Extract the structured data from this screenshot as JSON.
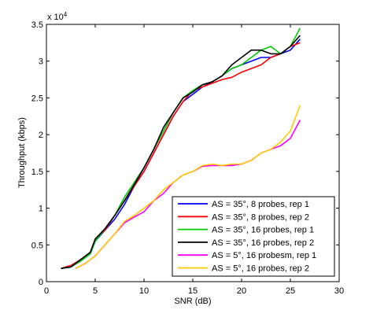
{
  "chart_data": {
    "type": "line",
    "title": "",
    "xlabel": "SNR (dB)",
    "ylabel": "Throughput (kbps)",
    "xlim": [
      0,
      30
    ],
    "ylim": [
      0,
      3.5
    ],
    "y_multiplier_label": "x 10",
    "y_multiplier_exponent": "4",
    "xticks": [
      "0",
      "5",
      "10",
      "15",
      "20",
      "25",
      "30"
    ],
    "yticks": [
      "0",
      "0.5",
      "1",
      "1.5",
      "2",
      "2.5",
      "3",
      "3.5"
    ],
    "grid": false,
    "legend_position": "bottom-right",
    "series": [
      {
        "name": "AS = 35°, 8 probes, rep 1",
        "color": "#0000ff",
        "points": [
          [
            1.5,
            0.18
          ],
          [
            2.5,
            0.2
          ],
          [
            3.5,
            0.28
          ],
          [
            4.5,
            0.38
          ],
          [
            5,
            0.55
          ],
          [
            6,
            0.7
          ],
          [
            7,
            0.85
          ],
          [
            8,
            1.05
          ],
          [
            9,
            1.3
          ],
          [
            10,
            1.5
          ],
          [
            11,
            1.75
          ],
          [
            12,
            2.0
          ],
          [
            13,
            2.25
          ],
          [
            14,
            2.45
          ],
          [
            15,
            2.55
          ],
          [
            16,
            2.65
          ],
          [
            17,
            2.72
          ],
          [
            18,
            2.8
          ],
          [
            19,
            2.9
          ],
          [
            20,
            2.95
          ],
          [
            21,
            3.0
          ],
          [
            22,
            3.05
          ],
          [
            23,
            3.05
          ],
          [
            24,
            3.1
          ],
          [
            25,
            3.15
          ],
          [
            26,
            3.3
          ]
        ]
      },
      {
        "name": "AS = 35°, 8 probes, rep 2",
        "color": "#ff0000",
        "points": [
          [
            1.5,
            0.18
          ],
          [
            2.5,
            0.22
          ],
          [
            3.5,
            0.3
          ],
          [
            4.5,
            0.4
          ],
          [
            5,
            0.58
          ],
          [
            6,
            0.7
          ],
          [
            7,
            0.9
          ],
          [
            8,
            1.1
          ],
          [
            9,
            1.3
          ],
          [
            10,
            1.5
          ],
          [
            11,
            1.75
          ],
          [
            12,
            2.0
          ],
          [
            13,
            2.25
          ],
          [
            14,
            2.45
          ],
          [
            15,
            2.6
          ],
          [
            16,
            2.65
          ],
          [
            17,
            2.7
          ],
          [
            18,
            2.75
          ],
          [
            19,
            2.78
          ],
          [
            20,
            2.85
          ],
          [
            21,
            2.9
          ],
          [
            22,
            2.95
          ],
          [
            23,
            3.05
          ],
          [
            24,
            3.1
          ],
          [
            25,
            3.2
          ],
          [
            26,
            3.25
          ]
        ]
      },
      {
        "name": "AS = 35°, 16 probes, rep 1",
        "color": "#00cc00",
        "points": [
          [
            1.5,
            0.18
          ],
          [
            2.5,
            0.2
          ],
          [
            3.5,
            0.28
          ],
          [
            4.5,
            0.38
          ],
          [
            5,
            0.55
          ],
          [
            6,
            0.72
          ],
          [
            7,
            0.9
          ],
          [
            8,
            1.15
          ],
          [
            9,
            1.35
          ],
          [
            10,
            1.55
          ],
          [
            11,
            1.8
          ],
          [
            12,
            2.05
          ],
          [
            13,
            2.3
          ],
          [
            14,
            2.5
          ],
          [
            15,
            2.6
          ],
          [
            16,
            2.68
          ],
          [
            17,
            2.72
          ],
          [
            18,
            2.8
          ],
          [
            19,
            2.9
          ],
          [
            20,
            2.95
          ],
          [
            21,
            3.05
          ],
          [
            22,
            3.15
          ],
          [
            23,
            3.2
          ],
          [
            24,
            3.1
          ],
          [
            25,
            3.2
          ],
          [
            26,
            3.45
          ]
        ]
      },
      {
        "name": "AS = 35°, 16 probes, rep 2",
        "color": "#000000",
        "points": [
          [
            1.5,
            0.18
          ],
          [
            2.5,
            0.2
          ],
          [
            3.5,
            0.3
          ],
          [
            4.5,
            0.4
          ],
          [
            5,
            0.58
          ],
          [
            6,
            0.72
          ],
          [
            7,
            0.9
          ],
          [
            8,
            1.1
          ],
          [
            9,
            1.32
          ],
          [
            10,
            1.55
          ],
          [
            11,
            1.8
          ],
          [
            12,
            2.1
          ],
          [
            13,
            2.3
          ],
          [
            14,
            2.5
          ],
          [
            15,
            2.58
          ],
          [
            16,
            2.68
          ],
          [
            17,
            2.72
          ],
          [
            18,
            2.8
          ],
          [
            19,
            2.95
          ],
          [
            20,
            3.05
          ],
          [
            21,
            3.15
          ],
          [
            22,
            3.15
          ],
          [
            23,
            3.1
          ],
          [
            24,
            3.1
          ],
          [
            25,
            3.2
          ],
          [
            26,
            3.35
          ]
        ]
      },
      {
        "name": "AS = 5°, 16 probesm, rep 1",
        "color": "#ff00ff",
        "points": [
          [
            3,
            0.18
          ],
          [
            4,
            0.25
          ],
          [
            5,
            0.35
          ],
          [
            6,
            0.5
          ],
          [
            7,
            0.65
          ],
          [
            8,
            0.8
          ],
          [
            9,
            0.88
          ],
          [
            10,
            0.95
          ],
          [
            11,
            1.1
          ],
          [
            12,
            1.2
          ],
          [
            13,
            1.35
          ],
          [
            14,
            1.45
          ],
          [
            15,
            1.5
          ],
          [
            16,
            1.57
          ],
          [
            17,
            1.58
          ],
          [
            18,
            1.58
          ],
          [
            19,
            1.58
          ],
          [
            20,
            1.6
          ],
          [
            21,
            1.65
          ],
          [
            22,
            1.75
          ],
          [
            23,
            1.8
          ],
          [
            24,
            1.85
          ],
          [
            25,
            1.95
          ],
          [
            26,
            2.2
          ]
        ]
      },
      {
        "name": "AS = 5°, 16 probes, rep 2",
        "color": "#ffcc00",
        "points": [
          [
            3,
            0.18
          ],
          [
            4,
            0.25
          ],
          [
            5,
            0.35
          ],
          [
            6,
            0.5
          ],
          [
            7,
            0.65
          ],
          [
            8,
            0.82
          ],
          [
            9,
            0.9
          ],
          [
            10,
            1.0
          ],
          [
            11,
            1.1
          ],
          [
            12,
            1.25
          ],
          [
            13,
            1.35
          ],
          [
            14,
            1.45
          ],
          [
            15,
            1.5
          ],
          [
            16,
            1.58
          ],
          [
            17,
            1.6
          ],
          [
            18,
            1.58
          ],
          [
            19,
            1.6
          ],
          [
            20,
            1.6
          ],
          [
            21,
            1.65
          ],
          [
            22,
            1.75
          ],
          [
            23,
            1.8
          ],
          [
            24,
            1.9
          ],
          [
            25,
            2.05
          ],
          [
            26,
            2.4
          ]
        ]
      }
    ]
  }
}
